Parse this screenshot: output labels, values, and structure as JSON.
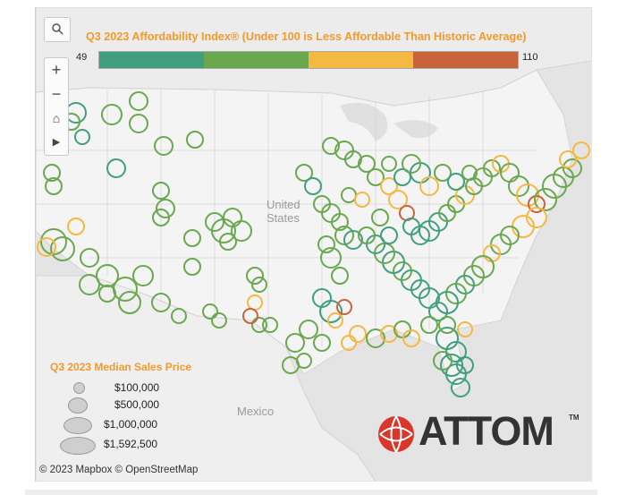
{
  "title": "Q3 2023 Affordability Index® (Under 100 is Less Affordable Than Historic Average)",
  "color_scale": {
    "min_label": "49",
    "max_label": "110",
    "segments": [
      "#3f9f7f",
      "#6aa84f",
      "#f4b942",
      "#c8643b"
    ]
  },
  "legend": {
    "title": "Q3 2023 Median Sales Price",
    "items": [
      {
        "label": "$100,000",
        "size": "small"
      },
      {
        "label": "$500,000",
        "size": "medium"
      },
      {
        "label": "$1,000,000",
        "size": "large"
      },
      {
        "label": "$1,592,500",
        "size": "xlarge"
      }
    ]
  },
  "map_labels": {
    "country_us_line1": "United",
    "country_us_line2": "States",
    "country_mexico": "Mexico"
  },
  "attribution": "© 2023 Mapbox  © OpenStreetMap",
  "logo": {
    "text": "ATTOM",
    "tm": "TM"
  },
  "controls": {
    "zoom_in": "+",
    "zoom_out": "−",
    "home": "⌂",
    "play": "▶"
  },
  "colors": {
    "teal": "#3f9f7f",
    "green": "#6aa84f",
    "yellow": "#f4b942",
    "red": "#c8643b",
    "accent": "#f39a2c"
  }
}
